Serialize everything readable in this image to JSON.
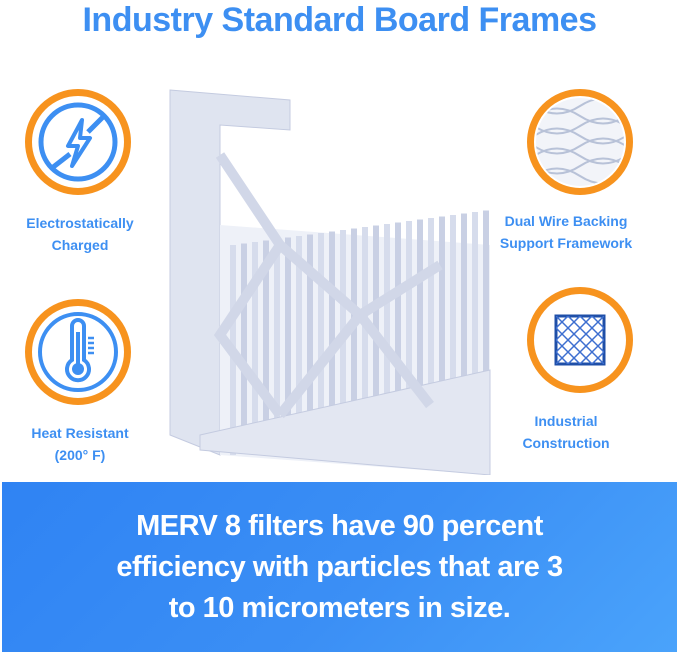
{
  "title": "Industry Standard Board Frames",
  "features": [
    {
      "icon": "no-static-bolt-icon",
      "line1": "Electrostatically",
      "line2": "Charged"
    },
    {
      "icon": "thermometer-icon",
      "line1": "Heat Resistant",
      "line2": "(200° F)"
    },
    {
      "icon": "wire-mesh-icon",
      "line1": "Dual Wire Backing",
      "line2": "Support Framework"
    },
    {
      "icon": "grid-frame-icon",
      "line1": "Industrial",
      "line2": "Construction"
    }
  ],
  "banner": {
    "line1": "MERV 8 filters have 90 percent",
    "line2": "efficiency with particles that are 3",
    "line3": "to 10 micrometers in size."
  },
  "colors": {
    "accent_blue": "#3d8ff2",
    "ring_orange": "#f7931e",
    "banner_blue": "#2f83f3"
  }
}
